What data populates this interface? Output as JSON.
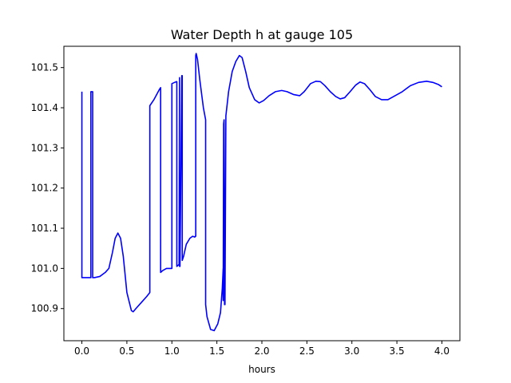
{
  "chart_data": {
    "type": "line",
    "title": "Water Depth h at gauge 105",
    "xlabel": "hours",
    "ylabel": "",
    "xlim": [
      -0.2,
      4.2
    ],
    "ylim": [
      100.82,
      101.553
    ],
    "x_ticks": [
      0.0,
      0.5,
      1.0,
      1.5,
      2.0,
      2.5,
      3.0,
      3.5,
      4.0
    ],
    "x_tick_labels": [
      "0.0",
      "0.5",
      "1.0",
      "1.5",
      "2.0",
      "2.5",
      "3.0",
      "3.5",
      "4.0"
    ],
    "y_ticks": [
      100.9,
      101.0,
      101.1,
      101.2,
      101.3,
      101.4,
      101.5
    ],
    "y_tick_labels": [
      "100.9",
      "101.0",
      "101.1",
      "101.2",
      "101.3",
      "101.4",
      "101.5"
    ],
    "grid": false,
    "legend": "none",
    "series": [
      {
        "color": "#0000ff",
        "x": [
          0.0,
          0.0,
          0.0,
          0.09,
          0.1,
          0.1,
          0.12,
          0.12,
          0.14,
          0.2,
          0.26,
          0.3,
          0.34,
          0.37,
          0.4,
          0.43,
          0.46,
          0.5,
          0.55,
          0.57,
          0.6,
          0.66,
          0.72,
          0.755,
          0.755,
          0.8,
          0.86,
          0.875,
          0.875,
          0.9,
          0.94,
          0.995,
          1.0,
          1.0,
          1.05,
          1.055,
          1.055,
          1.08,
          1.085,
          1.085,
          1.09,
          1.11,
          1.115,
          1.115,
          1.13,
          1.14,
          1.16,
          1.2,
          1.23,
          1.255,
          1.26,
          1.265,
          1.265,
          1.27,
          1.285,
          1.31,
          1.35,
          1.375,
          1.375,
          1.39,
          1.43,
          1.47,
          1.51,
          1.54,
          1.56,
          1.57,
          1.57,
          1.575,
          1.58,
          1.585,
          1.59,
          1.6,
          1.61,
          1.63,
          1.67,
          1.71,
          1.75,
          1.78,
          1.82,
          1.86,
          1.92,
          1.97,
          2.02,
          2.08,
          2.15,
          2.22,
          2.28,
          2.35,
          2.42,
          2.47,
          2.54,
          2.6,
          2.65,
          2.7,
          2.76,
          2.82,
          2.87,
          2.92,
          2.98,
          3.04,
          3.09,
          3.14,
          3.2,
          3.26,
          3.33,
          3.4,
          3.48,
          3.56,
          3.65,
          3.74,
          3.83,
          3.9,
          3.96,
          4.0
        ],
        "y": [
          101.44,
          101.44,
          100.977,
          100.977,
          100.977,
          101.44,
          101.44,
          100.977,
          100.977,
          100.98,
          100.99,
          101.0,
          101.04,
          101.075,
          101.088,
          101.075,
          101.03,
          100.94,
          100.895,
          100.892,
          100.9,
          100.915,
          100.93,
          100.94,
          101.405,
          101.42,
          101.445,
          101.45,
          100.99,
          100.995,
          101.0,
          101.0,
          101.0,
          101.46,
          101.465,
          101.465,
          101.005,
          101.01,
          101.475,
          101.005,
          101.005,
          101.48,
          101.48,
          101.02,
          101.03,
          101.04,
          101.06,
          101.075,
          101.08,
          101.078,
          101.08,
          101.08,
          101.53,
          101.535,
          101.52,
          101.47,
          101.4,
          101.37,
          100.91,
          100.88,
          100.848,
          100.845,
          100.862,
          100.89,
          100.95,
          101.0,
          100.92,
          101.36,
          101.37,
          100.91,
          100.91,
          101.38,
          101.4,
          101.44,
          101.49,
          101.515,
          101.53,
          101.525,
          101.49,
          101.45,
          101.42,
          101.412,
          101.418,
          101.43,
          101.44,
          101.443,
          101.44,
          101.433,
          101.43,
          101.44,
          101.46,
          101.466,
          101.465,
          101.455,
          101.44,
          101.428,
          101.422,
          101.425,
          101.44,
          101.456,
          101.464,
          101.46,
          101.445,
          101.428,
          101.42,
          101.42,
          101.43,
          101.44,
          101.455,
          101.463,
          101.466,
          101.463,
          101.458,
          101.452
        ]
      }
    ]
  }
}
